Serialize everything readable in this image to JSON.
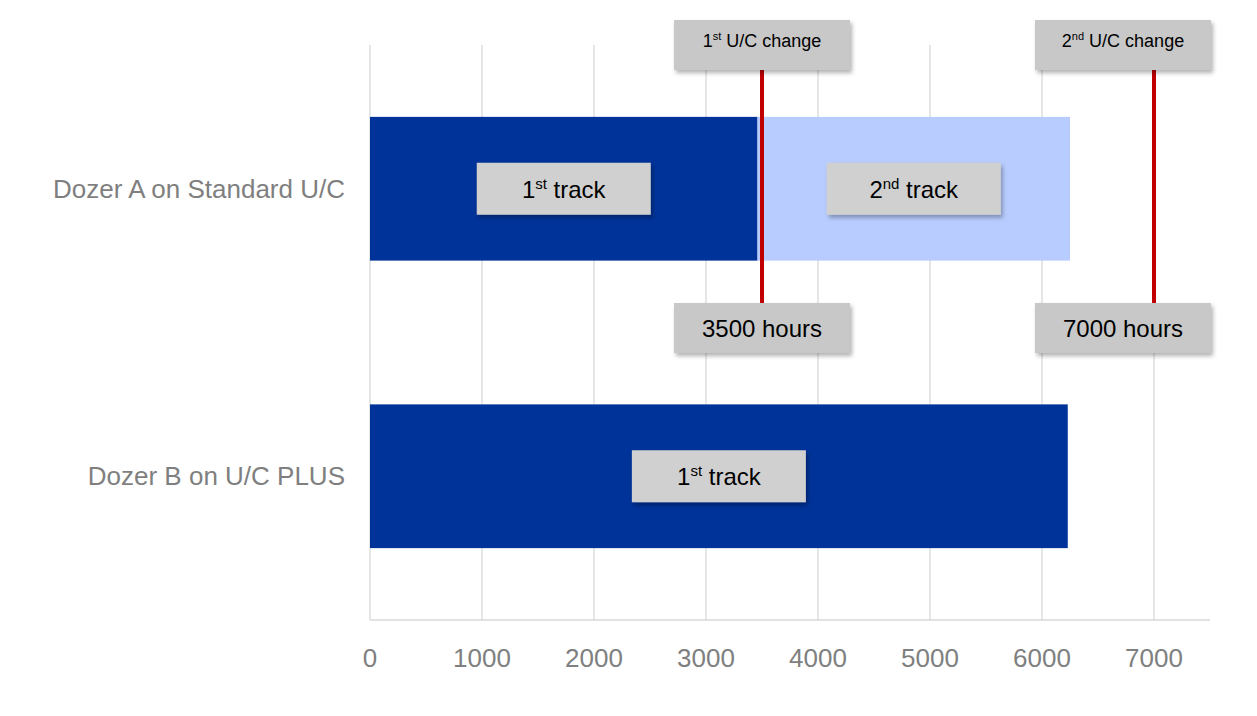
{
  "chart_data": {
    "type": "bar",
    "orientation": "horizontal",
    "stacked": true,
    "grid": true,
    "categories": [
      "Dozer A on Standard U/C",
      "Dozer B on U/C PLUS"
    ],
    "series": [
      {
        "name": "1st track",
        "color": "#003399",
        "values": [
          3460,
          6230
        ]
      },
      {
        "name": "2nd track",
        "color": "#b8ccff",
        "values": [
          2790,
          null
        ]
      }
    ],
    "xlim": [
      0,
      7500
    ],
    "xticks": [
      0,
      1000,
      2000,
      3000,
      4000,
      5000,
      6000,
      7000
    ],
    "annotations": [
      {
        "value": 3500,
        "text": "1st U/C change",
        "label": "3500 hours",
        "color": "#c00000"
      },
      {
        "value": 7000,
        "text": "2nd U/C change",
        "label": "7000 hours",
        "color": "#c00000"
      }
    ]
  }
}
